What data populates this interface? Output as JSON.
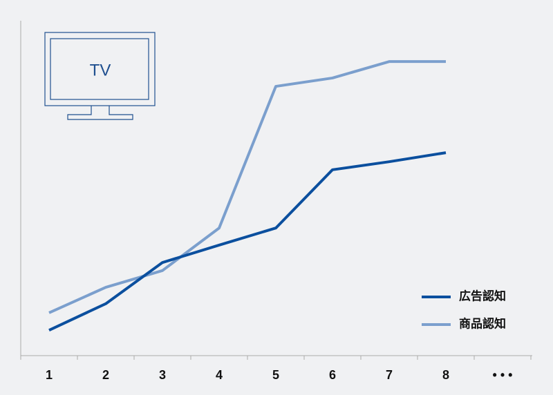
{
  "chart_data": {
    "type": "line",
    "annotation": "TV",
    "categories": [
      "1",
      "2",
      "3",
      "4",
      "5",
      "6",
      "7",
      "8",
      "• • •"
    ],
    "series": [
      {
        "name": "広告認知",
        "color": "#0b4f9e",
        "values": [
          7.6,
          15.5,
          27.8,
          33.0,
          38.1,
          55.5,
          57.9,
          60.6,
          null
        ]
      },
      {
        "name": "商品認知",
        "color": "#7b9fcd",
        "values": [
          12.8,
          20.4,
          25.4,
          38.1,
          80.4,
          82.9,
          87.8,
          87.8,
          null
        ]
      }
    ],
    "ylim": [
      0,
      100
    ]
  }
}
